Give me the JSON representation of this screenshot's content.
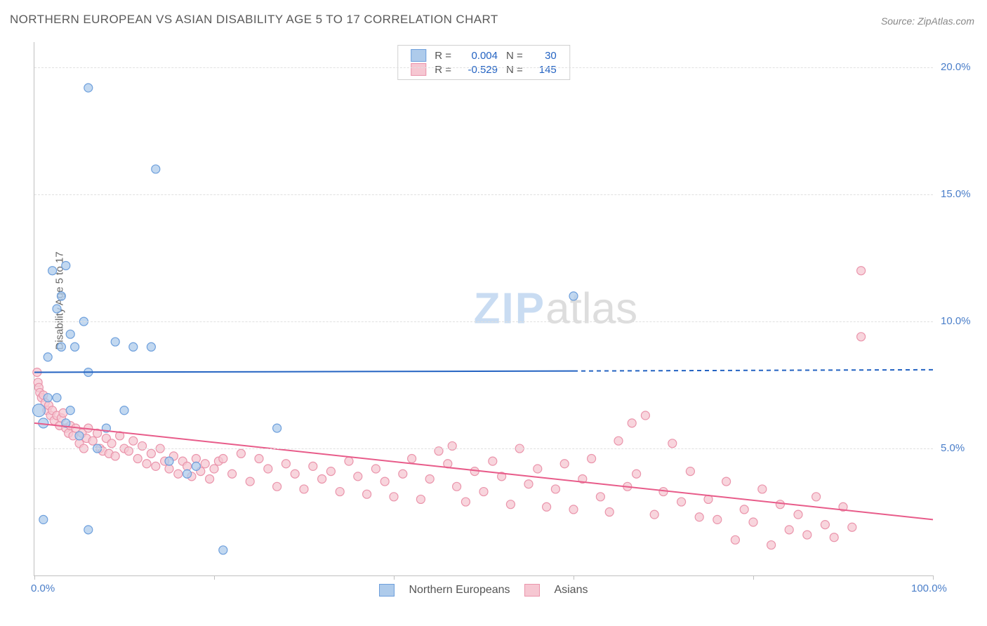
{
  "title": "NORTHERN EUROPEAN VS ASIAN DISABILITY AGE 5 TO 17 CORRELATION CHART",
  "source": "Source: ZipAtlas.com",
  "y_axis_label": "Disability Age 5 to 17",
  "watermark_bold": "ZIP",
  "watermark_light": "atlas",
  "chart": {
    "type": "scatter",
    "xlim": [
      0,
      100
    ],
    "ylim": [
      0,
      21
    ],
    "y_ticks": [
      5,
      10,
      15,
      20
    ],
    "y_tick_labels": [
      "5.0%",
      "10.0%",
      "15.0%",
      "20.0%"
    ],
    "x_tick_positions": [
      0,
      20,
      40,
      60,
      80,
      100
    ],
    "x_lim_labels": [
      "0.0%",
      "100.0%"
    ],
    "grid_color": "#e0e0e0",
    "background_color": "#ffffff",
    "axis_color": "#c0c0c0",
    "tick_label_color": "#4a7ec9",
    "series": [
      {
        "name": "Northern Europeans",
        "color_fill": "#aecbeb",
        "color_stroke": "#6d9fdc",
        "r_value": "0.004",
        "n_value": "30",
        "trend": {
          "x1": 0,
          "y1": 8.0,
          "x2": 60,
          "y2": 8.05,
          "extend_x": 100,
          "extend_y": 8.1,
          "stroke": "#2463c2",
          "width": 2
        },
        "points": [
          [
            0.5,
            6.5,
            9
          ],
          [
            1.0,
            6.0,
            7
          ],
          [
            1.5,
            7.0,
            6
          ],
          [
            2,
            12.0,
            6
          ],
          [
            2.5,
            10.5,
            6
          ],
          [
            3,
            11.0,
            6
          ],
          [
            3.5,
            12.2,
            6
          ],
          [
            1.5,
            8.6,
            6
          ],
          [
            3,
            9.0,
            6
          ],
          [
            4,
            9.5,
            6
          ],
          [
            4.5,
            9.0,
            6
          ],
          [
            2.5,
            7.0,
            6
          ],
          [
            3.5,
            6.0,
            6
          ],
          [
            4,
            6.5,
            6
          ],
          [
            5,
            5.5,
            6
          ],
          [
            5.5,
            10.0,
            6
          ],
          [
            6,
            8.0,
            6
          ],
          [
            7,
            5.0,
            6
          ],
          [
            8,
            5.8,
            6
          ],
          [
            9,
            9.2,
            6
          ],
          [
            10,
            6.5,
            6
          ],
          [
            11,
            9.0,
            6
          ],
          [
            13,
            9.0,
            6
          ],
          [
            15,
            4.5,
            6
          ],
          [
            17,
            4.0,
            6
          ],
          [
            18,
            4.3,
            6
          ],
          [
            21,
            1.0,
            6
          ],
          [
            27,
            5.8,
            6
          ],
          [
            6,
            19.2,
            6
          ],
          [
            13.5,
            16.0,
            6
          ],
          [
            1.0,
            2.2,
            6
          ],
          [
            6,
            1.8,
            6
          ],
          [
            60,
            11.0,
            6
          ]
        ]
      },
      {
        "name": "Asians",
        "color_fill": "#f6c7d2",
        "color_stroke": "#ea94ab",
        "r_value": "-0.529",
        "n_value": "145",
        "trend": {
          "x1": 0,
          "y1": 6.0,
          "x2": 100,
          "y2": 2.2,
          "stroke": "#e85c8a",
          "width": 2
        },
        "points": [
          [
            0.3,
            8.0,
            6
          ],
          [
            0.4,
            7.6,
            6
          ],
          [
            0.5,
            7.4,
            6
          ],
          [
            0.6,
            7.2,
            6
          ],
          [
            0.8,
            7.0,
            6
          ],
          [
            1.0,
            7.1,
            6
          ],
          [
            1.2,
            6.8,
            6
          ],
          [
            1.4,
            6.5,
            6
          ],
          [
            1.6,
            6.7,
            6
          ],
          [
            1.8,
            6.3,
            6
          ],
          [
            2.0,
            6.5,
            6
          ],
          [
            2.2,
            6.1,
            6
          ],
          [
            2.5,
            6.3,
            6
          ],
          [
            2.8,
            5.9,
            6
          ],
          [
            3.0,
            6.2,
            6
          ],
          [
            3.2,
            6.4,
            6
          ],
          [
            3.5,
            5.8,
            6
          ],
          [
            3.8,
            5.6,
            6
          ],
          [
            4.0,
            5.9,
            6
          ],
          [
            4.3,
            5.5,
            6
          ],
          [
            4.6,
            5.8,
            6
          ],
          [
            5.0,
            5.2,
            6
          ],
          [
            5.3,
            5.6,
            6
          ],
          [
            5.5,
            5.0,
            6
          ],
          [
            5.8,
            5.4,
            6
          ],
          [
            6.0,
            5.8,
            6
          ],
          [
            6.5,
            5.3,
            6
          ],
          [
            7.0,
            5.6,
            6
          ],
          [
            7.3,
            5.0,
            6
          ],
          [
            7.6,
            4.9,
            6
          ],
          [
            8.0,
            5.4,
            6
          ],
          [
            8.3,
            4.8,
            6
          ],
          [
            8.6,
            5.2,
            6
          ],
          [
            9.0,
            4.7,
            6
          ],
          [
            9.5,
            5.5,
            6
          ],
          [
            10,
            5.0,
            6
          ],
          [
            10.5,
            4.9,
            6
          ],
          [
            11,
            5.3,
            6
          ],
          [
            11.5,
            4.6,
            6
          ],
          [
            12,
            5.1,
            6
          ],
          [
            12.5,
            4.4,
            6
          ],
          [
            13,
            4.8,
            6
          ],
          [
            13.5,
            4.3,
            6
          ],
          [
            14,
            5.0,
            6
          ],
          [
            14.5,
            4.5,
            6
          ],
          [
            15,
            4.2,
            6
          ],
          [
            15.5,
            4.7,
            6
          ],
          [
            16,
            4.0,
            6
          ],
          [
            16.5,
            4.5,
            6
          ],
          [
            17,
            4.3,
            6
          ],
          [
            17.5,
            3.9,
            6
          ],
          [
            18,
            4.6,
            6
          ],
          [
            18.5,
            4.1,
            6
          ],
          [
            19,
            4.4,
            6
          ],
          [
            19.5,
            3.8,
            6
          ],
          [
            20,
            4.2,
            6
          ],
          [
            20.5,
            4.5,
            6
          ],
          [
            21,
            4.6,
            6
          ],
          [
            22,
            4.0,
            6
          ],
          [
            23,
            4.8,
            6
          ],
          [
            24,
            3.7,
            6
          ],
          [
            25,
            4.6,
            6
          ],
          [
            26,
            4.2,
            6
          ],
          [
            27,
            3.5,
            6
          ],
          [
            28,
            4.4,
            6
          ],
          [
            29,
            4.0,
            6
          ],
          [
            30,
            3.4,
            6
          ],
          [
            31,
            4.3,
            6
          ],
          [
            32,
            3.8,
            6
          ],
          [
            33,
            4.1,
            6
          ],
          [
            34,
            3.3,
            6
          ],
          [
            35,
            4.5,
            6
          ],
          [
            36,
            3.9,
            6
          ],
          [
            37,
            3.2,
            6
          ],
          [
            38,
            4.2,
            6
          ],
          [
            39,
            3.7,
            6
          ],
          [
            40,
            3.1,
            6
          ],
          [
            41,
            4.0,
            6
          ],
          [
            42,
            4.6,
            6
          ],
          [
            43,
            3.0,
            6
          ],
          [
            44,
            3.8,
            6
          ],
          [
            45,
            4.9,
            6
          ],
          [
            46,
            4.4,
            6
          ],
          [
            46.5,
            5.1,
            6
          ],
          [
            47,
            3.5,
            6
          ],
          [
            48,
            2.9,
            6
          ],
          [
            49,
            4.1,
            6
          ],
          [
            50,
            3.3,
            6
          ],
          [
            51,
            4.5,
            6
          ],
          [
            52,
            3.9,
            6
          ],
          [
            53,
            2.8,
            6
          ],
          [
            54,
            5.0,
            6
          ],
          [
            55,
            3.6,
            6
          ],
          [
            56,
            4.2,
            6
          ],
          [
            57,
            2.7,
            6
          ],
          [
            58,
            3.4,
            6
          ],
          [
            59,
            4.4,
            6
          ],
          [
            60,
            2.6,
            6
          ],
          [
            61,
            3.8,
            6
          ],
          [
            62,
            4.6,
            6
          ],
          [
            63,
            3.1,
            6
          ],
          [
            64,
            2.5,
            6
          ],
          [
            65,
            5.3,
            6
          ],
          [
            66,
            3.5,
            6
          ],
          [
            66.5,
            6.0,
            6
          ],
          [
            67,
            4.0,
            6
          ],
          [
            68,
            6.3,
            6
          ],
          [
            69,
            2.4,
            6
          ],
          [
            70,
            3.3,
            6
          ],
          [
            71,
            5.2,
            6
          ],
          [
            72,
            2.9,
            6
          ],
          [
            73,
            4.1,
            6
          ],
          [
            74,
            2.3,
            6
          ],
          [
            75,
            3.0,
            6
          ],
          [
            76,
            2.2,
            6
          ],
          [
            77,
            3.7,
            6
          ],
          [
            78,
            1.4,
            6
          ],
          [
            79,
            2.6,
            6
          ],
          [
            80,
            2.1,
            6
          ],
          [
            81,
            3.4,
            6
          ],
          [
            82,
            1.2,
            6
          ],
          [
            83,
            2.8,
            6
          ],
          [
            84,
            1.8,
            6
          ],
          [
            85,
            2.4,
            6
          ],
          [
            86,
            1.6,
            6
          ],
          [
            87,
            3.1,
            6
          ],
          [
            88,
            2.0,
            6
          ],
          [
            89,
            1.5,
            6
          ],
          [
            90,
            2.7,
            6
          ],
          [
            91,
            1.9,
            6
          ],
          [
            92,
            9.4,
            6
          ],
          [
            92,
            12.0,
            6
          ]
        ]
      }
    ]
  },
  "legend_bottom": [
    {
      "swatch_fill": "#aecbeb",
      "swatch_stroke": "#6d9fdc",
      "label": "Northern Europeans"
    },
    {
      "swatch_fill": "#f6c7d2",
      "swatch_stroke": "#ea94ab",
      "label": "Asians"
    }
  ]
}
